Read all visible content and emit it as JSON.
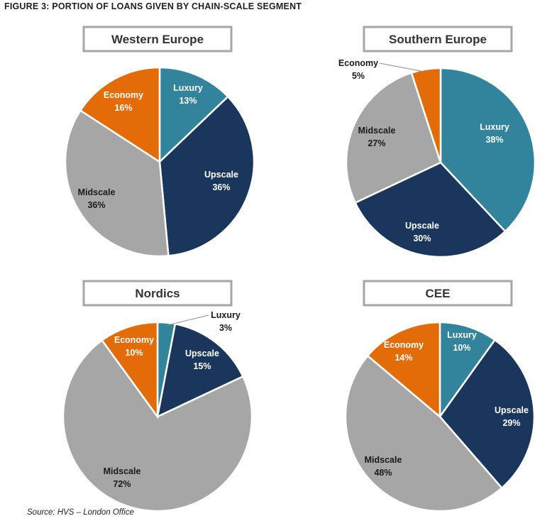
{
  "figure_title": "FIGURE 3:   PORTION OF LOANS GIVEN BY CHAIN-SCALE SEGMENT",
  "source": "Source: HVS – London Office",
  "colors": {
    "Luxury": "#31849b",
    "Upscale": "#1b365d",
    "Midscale": "#a6a6a6",
    "Economy": "#e36c09"
  },
  "chart_data": [
    {
      "type": "pie",
      "title": "Western Europe",
      "categories": [
        "Luxury",
        "Upscale",
        "Midscale",
        "Economy"
      ],
      "values": [
        13,
        36,
        36,
        16
      ],
      "labels": [
        "13%",
        "36%",
        "36%",
        "16%"
      ]
    },
    {
      "type": "pie",
      "title": "Southern Europe",
      "categories": [
        "Luxury",
        "Upscale",
        "Midscale",
        "Economy"
      ],
      "values": [
        38,
        30,
        27,
        5
      ],
      "labels": [
        "38%",
        "30%",
        "27%",
        "5%"
      ]
    },
    {
      "type": "pie",
      "title": "Nordics",
      "categories": [
        "Luxury",
        "Upscale",
        "Midscale",
        "Economy"
      ],
      "values": [
        3,
        15,
        72,
        10
      ],
      "labels": [
        "3%",
        "15%",
        "72%",
        "10%"
      ]
    },
    {
      "type": "pie",
      "title": "CEE",
      "categories": [
        "Luxury",
        "Upscale",
        "Midscale",
        "Economy"
      ],
      "values": [
        10,
        29,
        48,
        14
      ],
      "labels": [
        "10%",
        "29%",
        "48%",
        "14%"
      ]
    }
  ]
}
